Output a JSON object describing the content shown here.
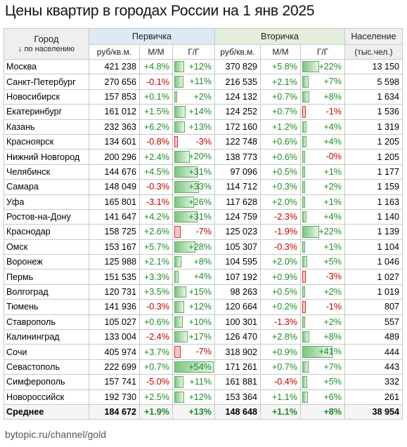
{
  "title": "Цены квартир в городах России на 1 янв 2025",
  "header": {
    "city_label": "Город",
    "city_sublabel": "↓ по населению",
    "primary_label": "Первичка",
    "secondary_label": "Вторичка",
    "population_label": "Население",
    "population_unit": "(тыс.чел.)",
    "price_unit": "руб/кв.м.",
    "mm": "М/М",
    "yy": "Г/Г"
  },
  "chart_data": {
    "type": "table",
    "columns": [
      "Город",
      "Первичка руб/кв.м.",
      "Первичка М/М",
      "Первичка Г/Г",
      "Вторичка руб/кв.м.",
      "Вторичка М/М",
      "Вторичка Г/Г",
      "Население (тыс.чел.)"
    ],
    "bar_scale_max": 54,
    "rows": [
      {
        "city": "Москва",
        "p_price": "421 238",
        "p_mm": "+4.8%",
        "p_yy": "+12%",
        "p_yy_v": 12,
        "s_price": "370 829",
        "s_mm": "+5.8%",
        "s_yy": "+22%",
        "s_yy_v": 22,
        "pop": "13 150"
      },
      {
        "city": "Санкт-Петербург",
        "p_price": "270 656",
        "p_mm": "-0.1%",
        "p_yy": "+11%",
        "p_yy_v": 11,
        "s_price": "216 535",
        "s_mm": "+2.1%",
        "s_yy": "+7%",
        "s_yy_v": 7,
        "pop": "5 598"
      },
      {
        "city": "Новосибирск",
        "p_price": "157 853",
        "p_mm": "+0.1%",
        "p_yy": "+2%",
        "p_yy_v": 2,
        "s_price": "124 132",
        "s_mm": "+0.7%",
        "s_yy": "+8%",
        "s_yy_v": 8,
        "pop": "1 634"
      },
      {
        "city": "Екатеринбург",
        "p_price": "161 012",
        "p_mm": "+1.5%",
        "p_yy": "+14%",
        "p_yy_v": 14,
        "s_price": "124 252",
        "s_mm": "+0.7%",
        "s_yy": "-1%",
        "s_yy_v": -1,
        "pop": "1 536"
      },
      {
        "city": "Казань",
        "p_price": "232 363",
        "p_mm": "+6.2%",
        "p_yy": "+13%",
        "p_yy_v": 13,
        "s_price": "172 160",
        "s_mm": "+1.2%",
        "s_yy": "+4%",
        "s_yy_v": 4,
        "pop": "1 319"
      },
      {
        "city": "Красноярск",
        "p_price": "134 601",
        "p_mm": "-0.8%",
        "p_yy": "-3%",
        "p_yy_v": -3,
        "s_price": "122 748",
        "s_mm": "+0.6%",
        "s_yy": "+4%",
        "s_yy_v": 4,
        "pop": "1 205"
      },
      {
        "city": "Нижний Новгород",
        "p_price": "200 296",
        "p_mm": "+2.4%",
        "p_yy": "+20%",
        "p_yy_v": 20,
        "s_price": "138 773",
        "s_mm": "+0.6%",
        "s_yy": "-0%",
        "s_yy_v": 0,
        "pop": "1 205"
      },
      {
        "city": "Челябинск",
        "p_price": "144 676",
        "p_mm": "+4.5%",
        "p_yy": "+31%",
        "p_yy_v": 31,
        "s_price": "97 096",
        "s_mm": "+0.5%",
        "s_yy": "+1%",
        "s_yy_v": 1,
        "pop": "1 177"
      },
      {
        "city": "Самара",
        "p_price": "148 049",
        "p_mm": "-0.3%",
        "p_yy": "+33%",
        "p_yy_v": 33,
        "s_price": "114 712",
        "s_mm": "+0.3%",
        "s_yy": "+2%",
        "s_yy_v": 2,
        "pop": "1 159"
      },
      {
        "city": "Уфа",
        "p_price": "165 801",
        "p_mm": "-3.1%",
        "p_yy": "+26%",
        "p_yy_v": 26,
        "s_price": "117 628",
        "s_mm": "+2.0%",
        "s_yy": "+1%",
        "s_yy_v": 1,
        "pop": "1 163"
      },
      {
        "city": "Ростов-на-Дону",
        "p_price": "141 647",
        "p_mm": "+4.2%",
        "p_yy": "+31%",
        "p_yy_v": 31,
        "s_price": "124 759",
        "s_mm": "-2.3%",
        "s_yy": "+4%",
        "s_yy_v": 4,
        "pop": "1 140"
      },
      {
        "city": "Краснодар",
        "p_price": "158 725",
        "p_mm": "+2.6%",
        "p_yy": "-7%",
        "p_yy_v": -7,
        "s_price": "125 023",
        "s_mm": "-1.9%",
        "s_yy": "+22%",
        "s_yy_v": 22,
        "pop": "1 139"
      },
      {
        "city": "Омск",
        "p_price": "153 167",
        "p_mm": "+5.7%",
        "p_yy": "+28%",
        "p_yy_v": 28,
        "s_price": "105 307",
        "s_mm": "-0.3%",
        "s_yy": "+1%",
        "s_yy_v": 1,
        "pop": "1 104"
      },
      {
        "city": "Воронеж",
        "p_price": "125 988",
        "p_mm": "+2.1%",
        "p_yy": "+8%",
        "p_yy_v": 8,
        "s_price": "104 595",
        "s_mm": "+2.0%",
        "s_yy": "+5%",
        "s_yy_v": 5,
        "pop": "1 046"
      },
      {
        "city": "Пермь",
        "p_price": "151 535",
        "p_mm": "+3.3%",
        "p_yy": "+4%",
        "p_yy_v": 4,
        "s_price": "107 192",
        "s_mm": "+0.9%",
        "s_yy": "-3%",
        "s_yy_v": -3,
        "pop": "1 027"
      },
      {
        "city": "Волгоград",
        "p_price": "120 731",
        "p_mm": "+3.5%",
        "p_yy": "+15%",
        "p_yy_v": 15,
        "s_price": "98 263",
        "s_mm": "+0.5%",
        "s_yy": "+2%",
        "s_yy_v": 2,
        "pop": "1 019"
      },
      {
        "city": "Тюмень",
        "p_price": "141 936",
        "p_mm": "-0.3%",
        "p_yy": "+12%",
        "p_yy_v": 12,
        "s_price": "120 664",
        "s_mm": "+0.2%",
        "s_yy": "-1%",
        "s_yy_v": -1,
        "pop": "807"
      },
      {
        "city": "Ставрополь",
        "p_price": "105 027",
        "p_mm": "+0.6%",
        "p_yy": "+10%",
        "p_yy_v": 10,
        "s_price": "100 301",
        "s_mm": "-1.3%",
        "s_yy": "+2%",
        "s_yy_v": 2,
        "pop": "557"
      },
      {
        "city": "Калининград",
        "p_price": "133 004",
        "p_mm": "-2.4%",
        "p_yy": "+17%",
        "p_yy_v": 17,
        "s_price": "126 470",
        "s_mm": "+2.8%",
        "s_yy": "+8%",
        "s_yy_v": 8,
        "pop": "489"
      },
      {
        "city": "Сочи",
        "p_price": "405 974",
        "p_mm": "+3.7%",
        "p_yy": "-7%",
        "p_yy_v": -7,
        "s_price": "318 902",
        "s_mm": "+0.9%",
        "s_yy": "+41%",
        "s_yy_v": 41,
        "pop": "444"
      },
      {
        "city": "Севастополь",
        "p_price": "222 699",
        "p_mm": "+0.7%",
        "p_yy": "+54%",
        "p_yy_v": 54,
        "s_price": "171 261",
        "s_mm": "+0.7%",
        "s_yy": "+7%",
        "s_yy_v": 7,
        "pop": "443"
      },
      {
        "city": "Симферополь",
        "p_price": "157 741",
        "p_mm": "-5.0%",
        "p_yy": "+11%",
        "p_yy_v": 11,
        "s_price": "161 881",
        "s_mm": "-0.4%",
        "s_yy": "+5%",
        "s_yy_v": 5,
        "pop": "332"
      },
      {
        "city": "Новороссийск",
        "p_price": "192 730",
        "p_mm": "+2.5%",
        "p_yy": "+12%",
        "p_yy_v": 12,
        "s_price": "153 364",
        "s_mm": "+1.1%",
        "s_yy": "+6%",
        "s_yy_v": 6,
        "pop": "261"
      }
    ],
    "total": {
      "city": "Среднее",
      "p_price": "184 672",
      "p_mm": "+1.9%",
      "p_yy": "+13%",
      "s_price": "148 648",
      "s_mm": "+1.1%",
      "s_yy": "+8%",
      "pop": "38 954"
    }
  },
  "colors": {
    "positive": "#1f8a2a",
    "negative": "#c00000",
    "bar_positive": "#7cc57e",
    "bar_negative": "#f3c9c9"
  },
  "footer": "bytopic.ru/channel/gold"
}
